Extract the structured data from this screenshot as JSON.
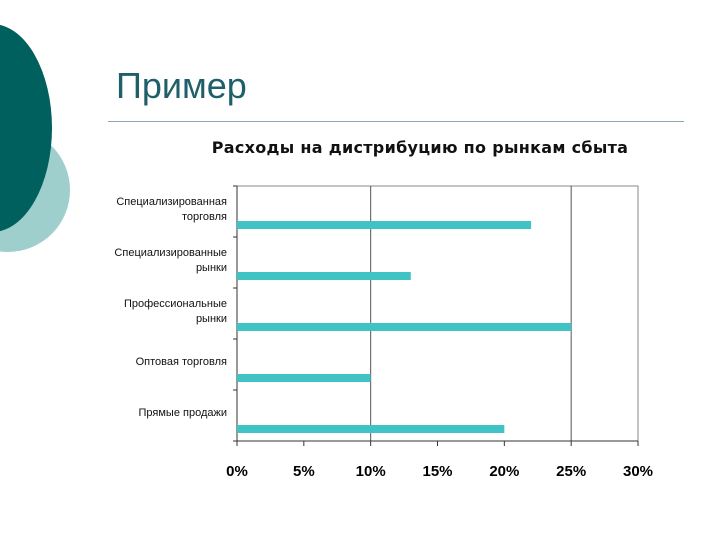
{
  "slide": {
    "title": "Пример",
    "colors": {
      "dark_teal": "#00605e",
      "light_teal": "#9ecfcc",
      "bar": "#3fc3c4"
    }
  },
  "chart_data": {
    "type": "bar",
    "orientation": "horizontal",
    "title": "Расходы на дистрибуцию по рынкам сбыта",
    "categories": [
      [
        "Специализированная",
        "торговля"
      ],
      [
        "Специализированные",
        "рынки"
      ],
      [
        "Профессиональные",
        "рынки"
      ],
      [
        "Оптовая торговля"
      ],
      [
        "Прямые продажи"
      ]
    ],
    "values": [
      0.22,
      0.13,
      0.25,
      0.1,
      0.2
    ],
    "xlim": [
      0,
      0.3
    ],
    "xticks": [
      0,
      0.05,
      0.1,
      0.15,
      0.2,
      0.25,
      0.3
    ],
    "xtick_labels": [
      "0%",
      "5%",
      "10%",
      "15%",
      "20%",
      "25%",
      "30%"
    ],
    "gridlines": "vertical at 0%, 10%, 25%",
    "grid_values": [
      0.1,
      0.25
    ],
    "xlabel": "",
    "ylabel": "",
    "legend": "none"
  }
}
